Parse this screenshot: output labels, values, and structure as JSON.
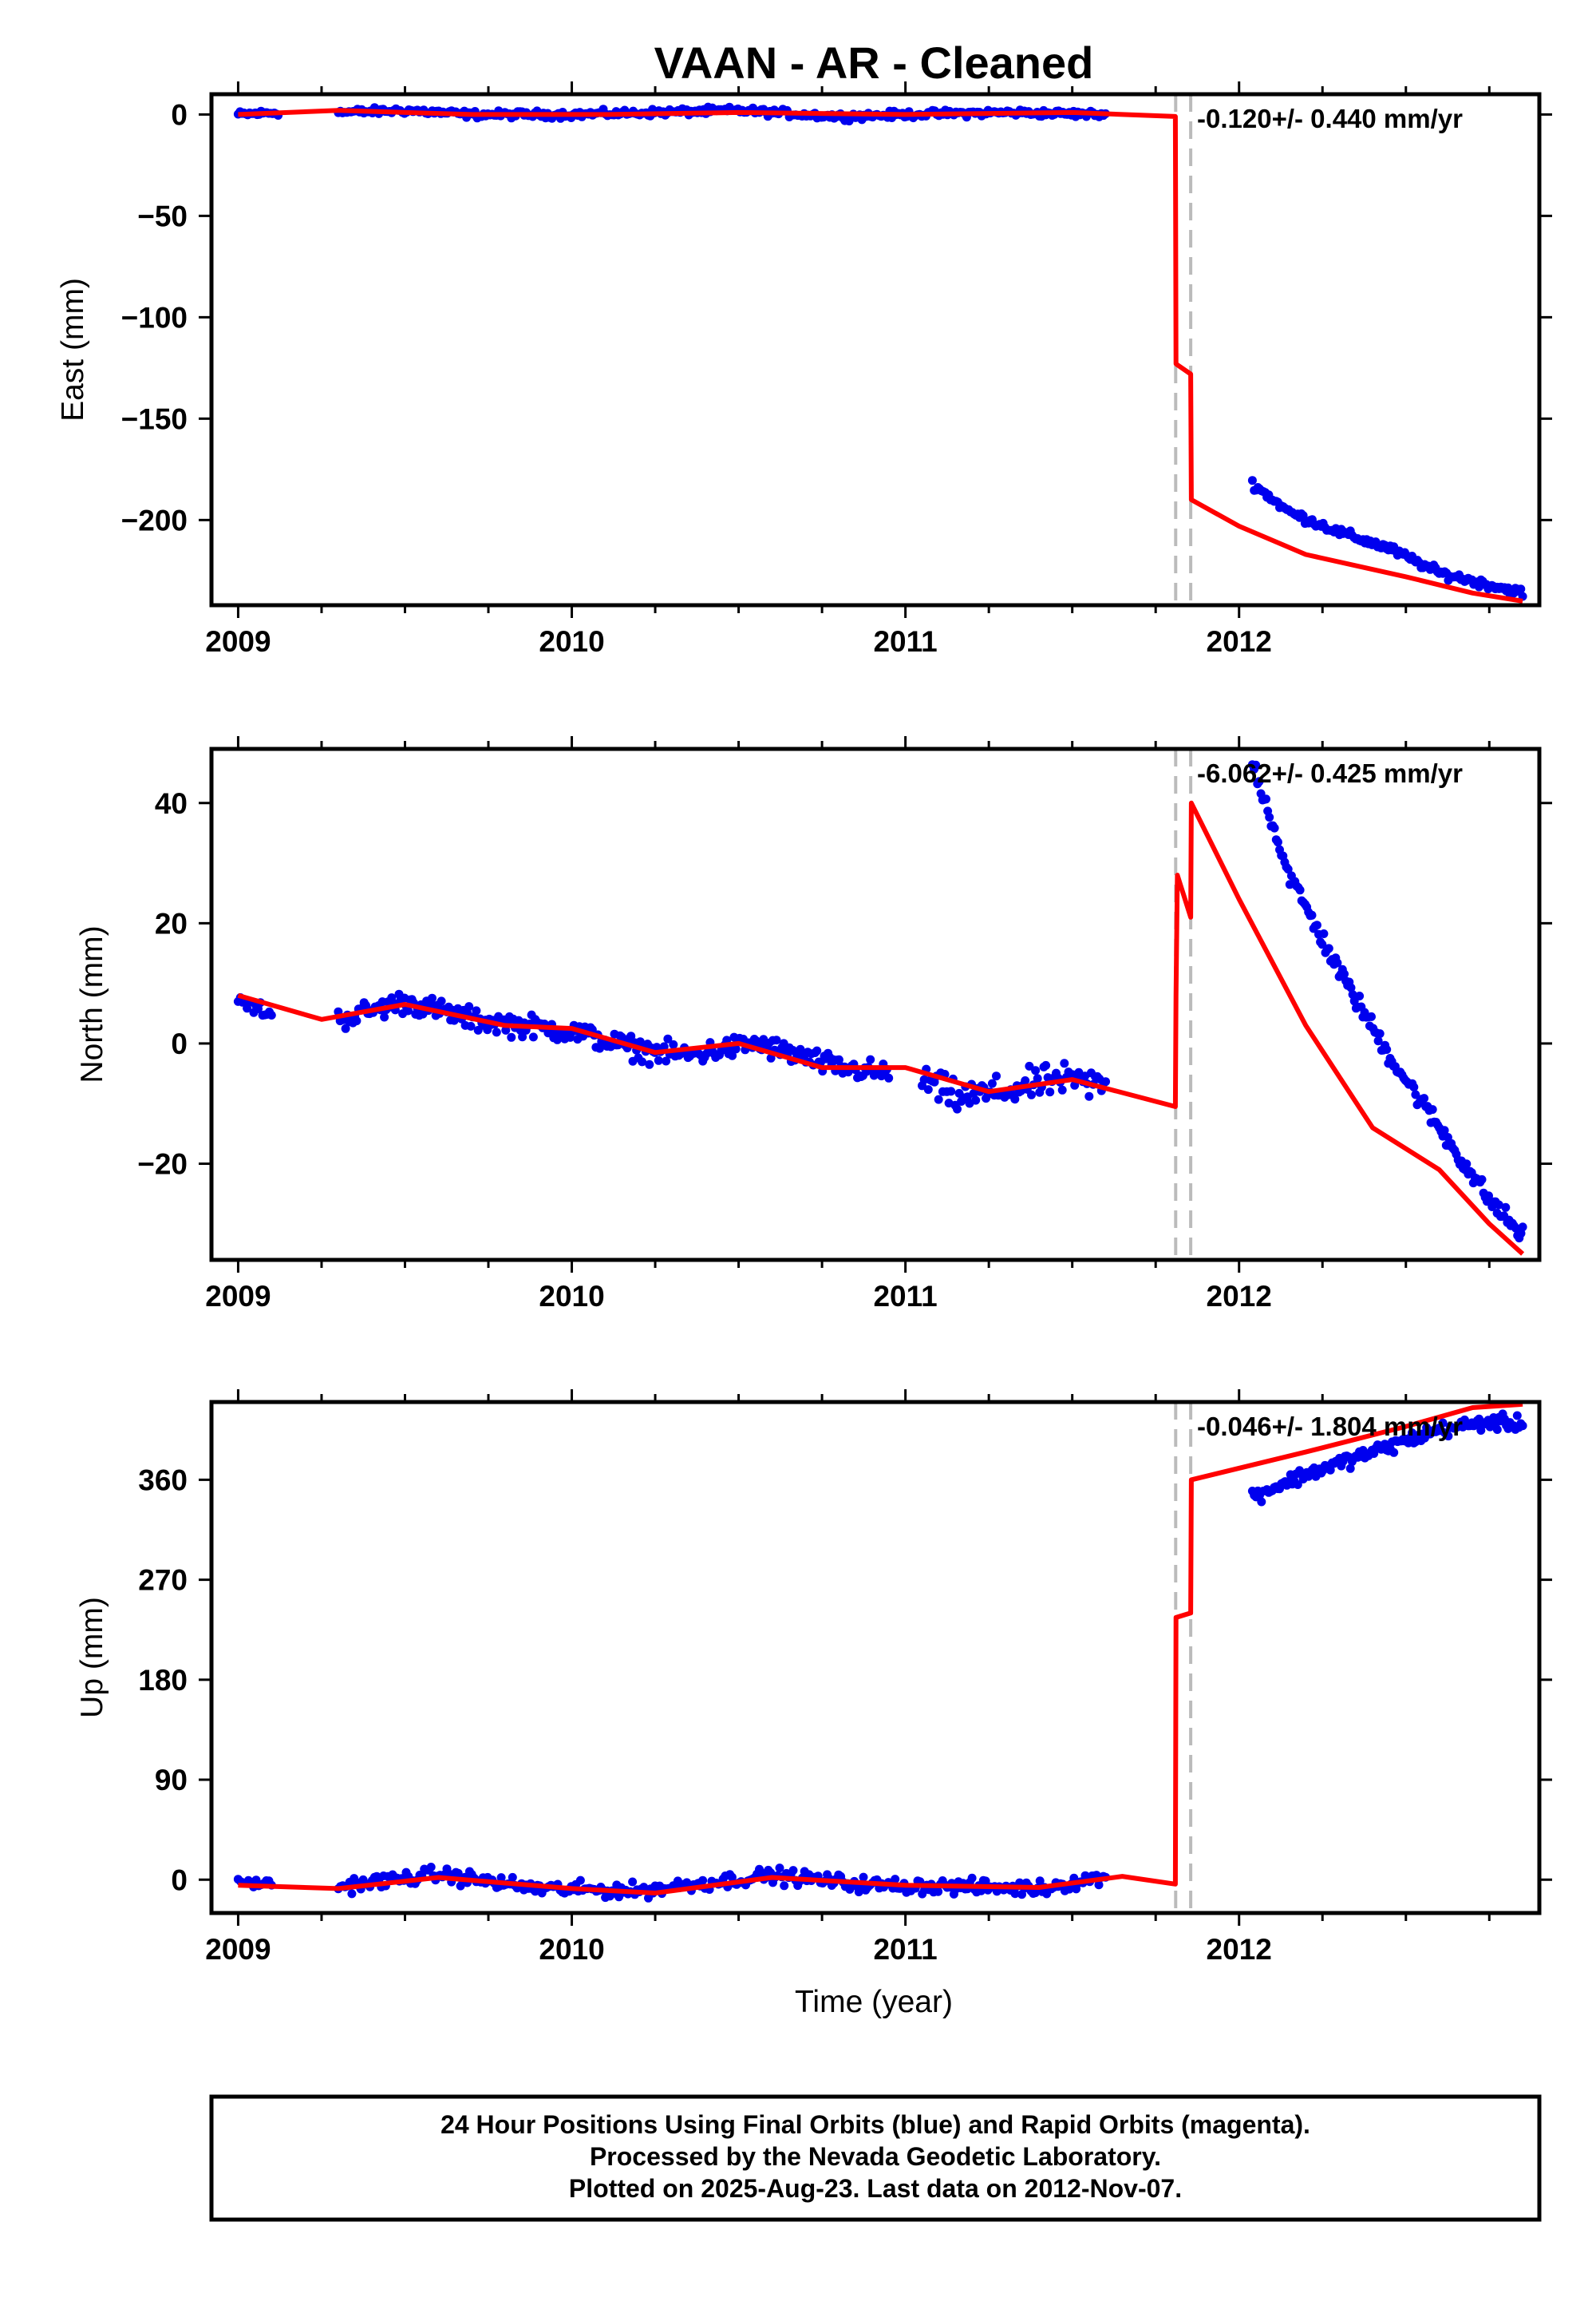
{
  "title": "VAAN  - AR - Cleaned",
  "xlabel": "Time (year)",
  "footer": {
    "line1": "24 Hour Positions Using Final Orbits (blue) and Rapid Orbits (magenta).",
    "line2": "Processed by the Nevada Geodetic Laboratory.",
    "line3": "Plotted on 2025-Aug-23. Last data on 2012-Nov-07."
  },
  "colors": {
    "data": "#0000ee",
    "model": "#ff0000",
    "step_line": "#bbbbbb",
    "frame": "#000000"
  },
  "chart_data": [
    {
      "type": "scatter",
      "component": "East",
      "ylabel": "East (mm)",
      "rate_label": "-0.120+/- 0.440 mm/yr",
      "xlim": [
        2008.92,
        2012.9
      ],
      "ylim": [
        -242,
        10
      ],
      "xticks": [
        2009,
        2010,
        2011,
        2012
      ],
      "yticks": [
        0,
        -50,
        -100,
        -150,
        -200
      ],
      "step_epochs": [
        2011.81,
        2011.855
      ],
      "data_segments": [
        {
          "x0": 2009.0,
          "x1": 2009.12,
          "anchors": [
            [
              2009.0,
              0
            ],
            [
              2009.12,
              1
            ]
          ],
          "noise": 1.2,
          "n": 22
        },
        {
          "x0": 2009.3,
          "x1": 2011.6,
          "anchors": [
            [
              2009.3,
              1
            ],
            [
              2009.5,
              2
            ],
            [
              2009.7,
              0
            ],
            [
              2010.0,
              0
            ],
            [
              2010.5,
              2
            ],
            [
              2010.8,
              -1
            ],
            [
              2011.0,
              0
            ],
            [
              2011.3,
              1
            ],
            [
              2011.6,
              0
            ]
          ],
          "noise": 1.3,
          "n": 360
        },
        {
          "x0": 2012.04,
          "x1": 2012.85,
          "anchors": [
            [
              2012.04,
              -182
            ],
            [
              2012.15,
              -196
            ],
            [
              2012.3,
              -206
            ],
            [
              2012.45,
              -214
            ],
            [
              2012.6,
              -226
            ],
            [
              2012.75,
              -232
            ],
            [
              2012.85,
              -236
            ]
          ],
          "noise": 1.6,
          "n": 150
        }
      ],
      "model": [
        [
          2009.0,
          0
        ],
        [
          2009.3,
          2
        ],
        [
          2009.7,
          0
        ],
        [
          2010.1,
          0
        ],
        [
          2010.5,
          1
        ],
        [
          2011.0,
          0
        ],
        [
          2011.5,
          1
        ],
        [
          2011.809,
          -1
        ],
        [
          2011.811,
          -123
        ],
        [
          2011.855,
          -128
        ],
        [
          2011.857,
          -190
        ],
        [
          2012.0,
          -203
        ],
        [
          2012.2,
          -217
        ],
        [
          2012.5,
          -228
        ],
        [
          2012.7,
          -236
        ],
        [
          2012.85,
          -240
        ]
      ]
    },
    {
      "type": "scatter",
      "component": "North",
      "ylabel": "North (mm)",
      "rate_label": "-6.062+/- 0.425 mm/yr",
      "xlim": [
        2008.92,
        2012.9
      ],
      "ylim": [
        -36,
        49
      ],
      "xticks": [
        2009,
        2010,
        2011,
        2012
      ],
      "yticks": [
        40,
        20,
        0,
        -20
      ],
      "step_epochs": [
        2011.81,
        2011.855
      ],
      "data_segments": [
        {
          "x0": 2009.0,
          "x1": 2009.1,
          "anchors": [
            [
              2009.0,
              7
            ],
            [
              2009.1,
              5
            ]
          ],
          "noise": 1.0,
          "n": 16
        },
        {
          "x0": 2009.3,
          "x1": 2010.95,
          "anchors": [
            [
              2009.3,
              4
            ],
            [
              2009.5,
              7
            ],
            [
              2009.7,
              4
            ],
            [
              2010.0,
              2
            ],
            [
              2010.2,
              -1
            ],
            [
              2010.35,
              -2
            ],
            [
              2010.55,
              0
            ],
            [
              2010.8,
              -4
            ],
            [
              2010.95,
              -5
            ]
          ],
          "noise": 1.4,
          "n": 300
        },
        {
          "x0": 2011.05,
          "x1": 2011.6,
          "anchors": [
            [
              2011.05,
              -6
            ],
            [
              2011.15,
              -9
            ],
            [
              2011.3,
              -8
            ],
            [
              2011.45,
              -6
            ],
            [
              2011.6,
              -7
            ]
          ],
          "noise": 2.0,
          "n": 90
        },
        {
          "x0": 2012.04,
          "x1": 2012.85,
          "anchors": [
            [
              2012.04,
              47
            ],
            [
              2012.15,
              28
            ],
            [
              2012.3,
              12
            ],
            [
              2012.45,
              -2
            ],
            [
              2012.6,
              -14
            ],
            [
              2012.75,
              -26
            ],
            [
              2012.85,
              -32
            ]
          ],
          "noise": 1.2,
          "n": 160
        }
      ],
      "model": [
        [
          2009.0,
          8
        ],
        [
          2009.25,
          4
        ],
        [
          2009.5,
          6.5
        ],
        [
          2009.8,
          3
        ],
        [
          2010.0,
          2.5
        ],
        [
          2010.25,
          -1.5
        ],
        [
          2010.5,
          0
        ],
        [
          2010.75,
          -4
        ],
        [
          2011.0,
          -4
        ],
        [
          2011.25,
          -8
        ],
        [
          2011.5,
          -6
        ],
        [
          2011.809,
          -10.5
        ],
        [
          2011.811,
          8
        ],
        [
          2011.815,
          28
        ],
        [
          2011.855,
          21
        ],
        [
          2011.857,
          40
        ],
        [
          2012.0,
          24
        ],
        [
          2012.2,
          3
        ],
        [
          2012.4,
          -14
        ],
        [
          2012.6,
          -21
        ],
        [
          2012.75,
          -30
        ],
        [
          2012.85,
          -35
        ]
      ]
    },
    {
      "type": "scatter",
      "component": "Up",
      "ylabel": "Up (mm)",
      "rate_label": "-0.046+/- 1.804 mm/yr",
      "xlim": [
        2008.92,
        2012.9
      ],
      "ylim": [
        -30,
        430
      ],
      "xticks": [
        2009,
        2010,
        2011,
        2012
      ],
      "yticks": [
        360,
        270,
        180,
        90,
        0
      ],
      "step_epochs": [
        2011.81,
        2011.855
      ],
      "data_segments": [
        {
          "x0": 2009.0,
          "x1": 2009.1,
          "anchors": [
            [
              2009.0,
              -2
            ],
            [
              2009.1,
              -4
            ]
          ],
          "noise": 3,
          "n": 14
        },
        {
          "x0": 2009.3,
          "x1": 2011.6,
          "anchors": [
            [
              2009.3,
              -6
            ],
            [
              2009.6,
              5
            ],
            [
              2009.9,
              -8
            ],
            [
              2010.2,
              -10
            ],
            [
              2010.6,
              4
            ],
            [
              2010.9,
              -5
            ],
            [
              2011.1,
              -6
            ],
            [
              2011.4,
              -8
            ],
            [
              2011.6,
              3
            ]
          ],
          "noise": 5,
          "n": 340
        },
        {
          "x0": 2012.04,
          "x1": 2012.85,
          "anchors": [
            [
              2012.04,
              345
            ],
            [
              2012.2,
              365
            ],
            [
              2012.4,
              385
            ],
            [
              2012.6,
              405
            ],
            [
              2012.75,
              412
            ],
            [
              2012.85,
              410
            ]
          ],
          "noise": 5,
          "n": 150
        }
      ],
      "model": [
        [
          2009.0,
          -5
        ],
        [
          2009.3,
          -8
        ],
        [
          2009.6,
          2
        ],
        [
          2010.0,
          -8
        ],
        [
          2010.25,
          -12
        ],
        [
          2010.6,
          2
        ],
        [
          2011.0,
          -5
        ],
        [
          2011.4,
          -7
        ],
        [
          2011.65,
          3
        ],
        [
          2011.809,
          -4
        ],
        [
          2011.811,
          236
        ],
        [
          2011.855,
          240
        ],
        [
          2011.857,
          360
        ],
        [
          2012.2,
          385
        ],
        [
          2012.5,
          408
        ],
        [
          2012.7,
          425
        ],
        [
          2012.85,
          428
        ]
      ]
    }
  ]
}
